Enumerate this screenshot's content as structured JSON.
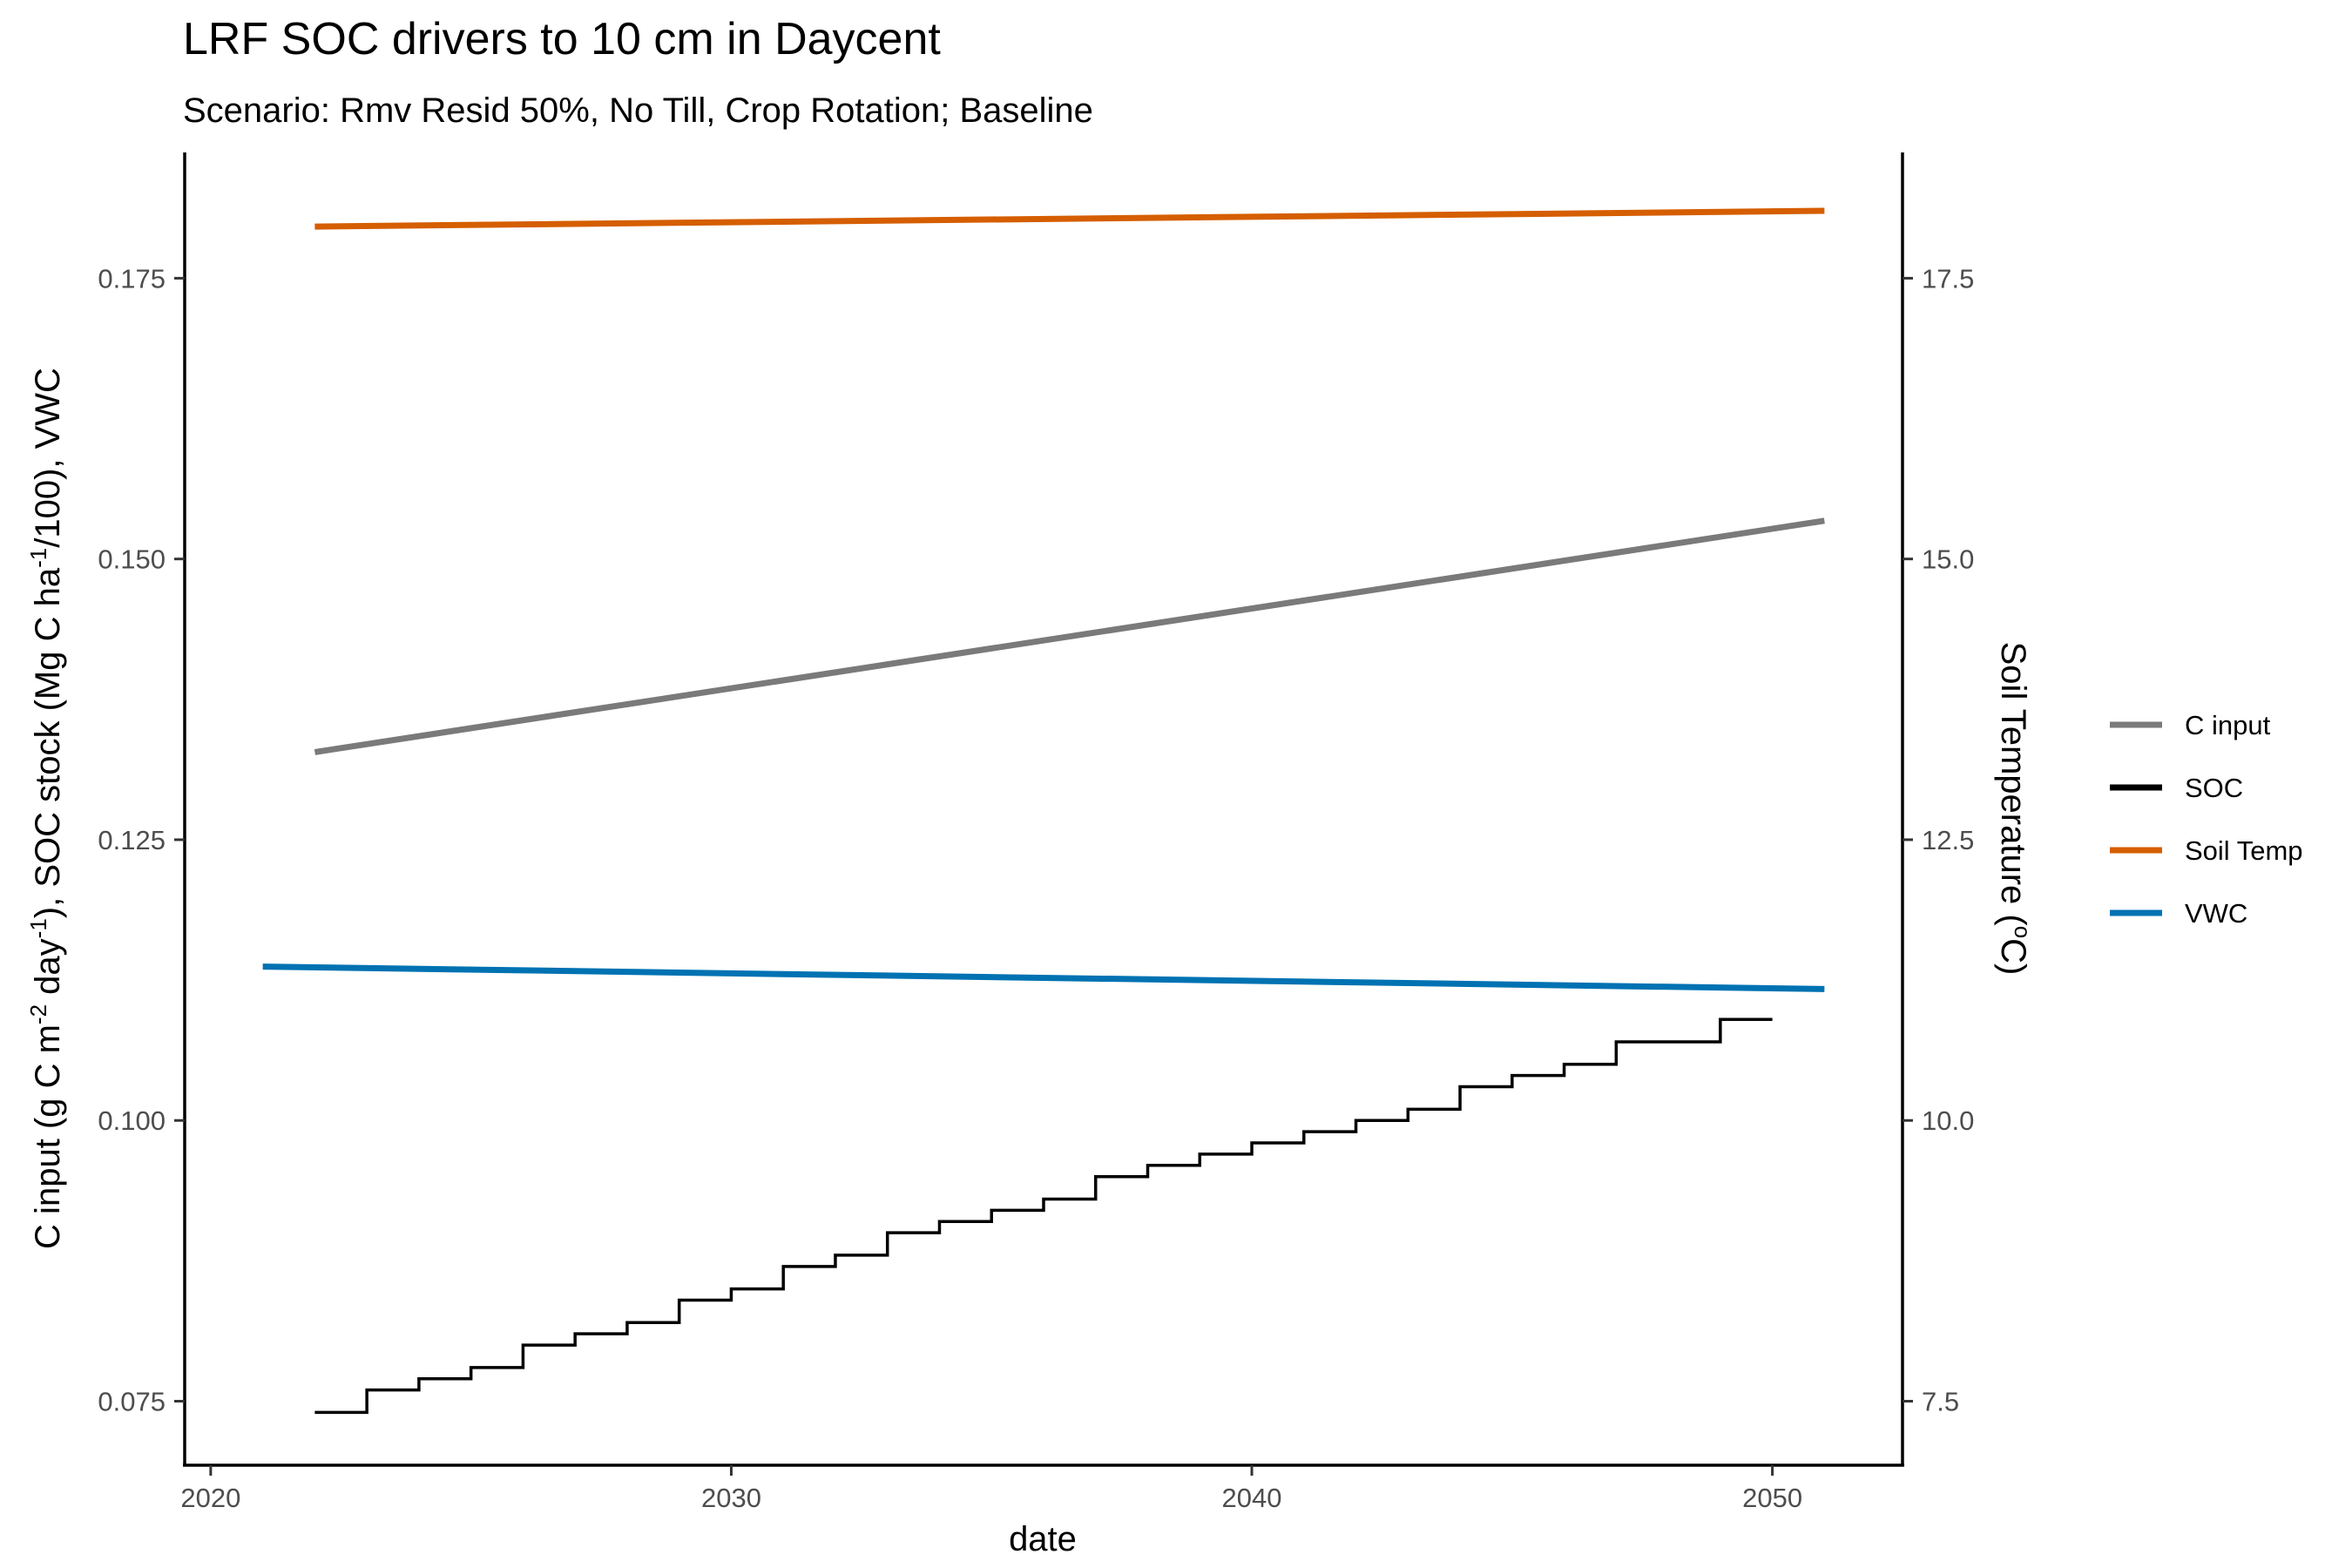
{
  "chart_data": {
    "type": "line",
    "title": "LRF SOC drivers to 10 cm in Daycent",
    "subtitle": "Scenario: Rmv Resid 50%, No Till, Crop Rotation; Baseline",
    "xlabel": "date",
    "ylabel_parts": [
      "C input (g C m",
      "-2",
      " day",
      "-1",
      "), SOC stock (Mg C ha",
      "-1",
      "/100), VWC"
    ],
    "y2label_parts": [
      "Soil Temperature (",
      "o",
      "C)"
    ],
    "xlim": [
      2019.5,
      2052.5
    ],
    "ylim": [
      0.0693,
      0.1862
    ],
    "y2lim": [
      6.93,
      18.62
    ],
    "x_ticks": [
      2020,
      2030,
      2040,
      2050
    ],
    "y_ticks": [
      0.075,
      0.1,
      0.125,
      0.15,
      0.175
    ],
    "y_tick_labels": [
      "0.075",
      "0.100",
      "0.125",
      "0.150",
      "0.175"
    ],
    "y2_ticks": [
      7.5,
      10,
      12.5,
      15,
      17.5
    ],
    "y2_tick_labels": [
      "7.5",
      "10.0",
      "12.5",
      "15.0",
      "17.5"
    ],
    "grid": false,
    "legend_position": "right",
    "series": [
      {
        "name": "C input",
        "color": "#7a7a7a",
        "axis": "left",
        "step": false,
        "x": [
          2022,
          2051
        ],
        "y": [
          0.1328,
          0.1534
        ]
      },
      {
        "name": "SOC",
        "color": "#000000",
        "axis": "left",
        "step": true,
        "x": [
          2022,
          2023,
          2024,
          2025,
          2026,
          2027,
          2028,
          2029,
          2030,
          2031,
          2032,
          2033,
          2034,
          2035,
          2036,
          2037,
          2038,
          2039,
          2040,
          2041,
          2042,
          2043,
          2044,
          2045,
          2046,
          2047,
          2048,
          2049,
          2050
        ],
        "y": [
          0.074,
          0.076,
          0.077,
          0.078,
          0.08,
          0.081,
          0.082,
          0.084,
          0.085,
          0.087,
          0.088,
          0.09,
          0.091,
          0.092,
          0.093,
          0.095,
          0.096,
          0.097,
          0.098,
          0.099,
          0.1,
          0.101,
          0.103,
          0.104,
          0.105,
          0.107,
          0.107,
          0.109,
          0.109
        ]
      },
      {
        "name": "Soil Temp",
        "color": "#d55e00",
        "axis": "right",
        "step": false,
        "x": [
          2022,
          2051
        ],
        "y": [
          17.96,
          18.1
        ]
      },
      {
        "name": "VWC",
        "color": "#0072b2",
        "axis": "left",
        "step": false,
        "x": [
          2021,
          2051
        ],
        "y": [
          0.1137,
          0.1117
        ]
      }
    ]
  }
}
